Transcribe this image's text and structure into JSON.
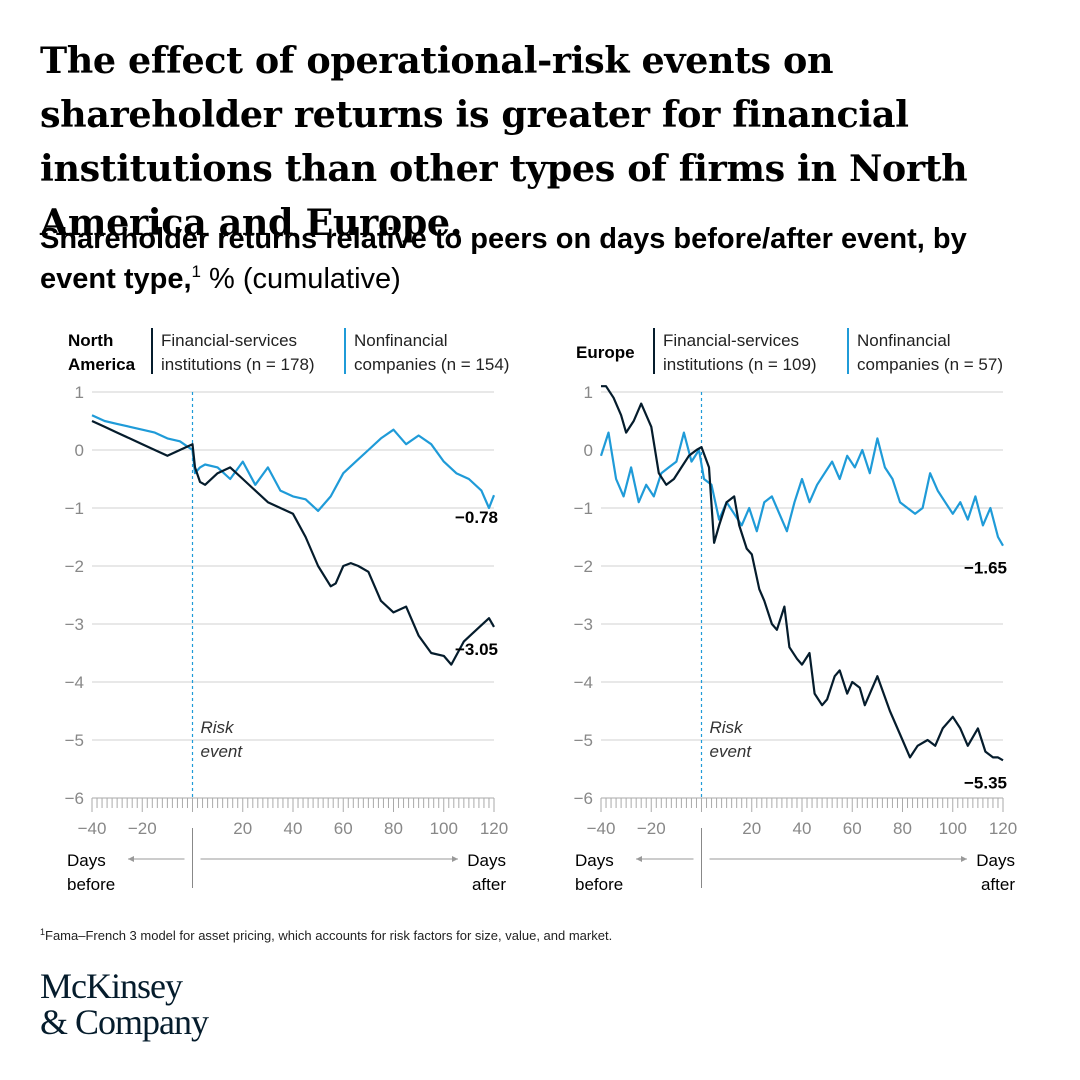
{
  "headline": "The effect of operational-risk events on shareholder returns is greater for financial institutions than other types of firms in North America and Europe.",
  "subtitle": {
    "bold": "Shareholder returns relative to peers on days before/after event, by event type,",
    "sup": "1",
    "rest": " % (cumulative)"
  },
  "colors": {
    "financial": "#051c2c",
    "nonfinancial": "#1f9bd8",
    "grid": "#d0d0d0",
    "risk_line": "#1f9bd8"
  },
  "labels": {
    "risk_event_line1": "Risk",
    "risk_event_line2": "event",
    "days_before_line1": "Days",
    "days_before_line2": "before",
    "days_after_line1": "Days",
    "days_after_line2": "after"
  },
  "chart_data": [
    {
      "type": "line",
      "region": "North America",
      "region_lines": [
        "North",
        "America"
      ],
      "xlabel": "Days",
      "ylabel": "%",
      "xlim": [
        -40,
        120
      ],
      "ylim": [
        -6,
        1
      ],
      "yticks": [
        1,
        0,
        -1,
        -2,
        -3,
        -4,
        -5,
        -6
      ],
      "yticklabels": [
        "1",
        "0",
        "−1",
        "−2",
        "−3",
        "−4",
        "−5",
        "−6"
      ],
      "xticks": [
        -40,
        -20,
        20,
        40,
        60,
        80,
        100,
        120
      ],
      "xticklabels": [
        "−40",
        "−20",
        "20",
        "40",
        "60",
        "80",
        "100",
        "120"
      ],
      "event_day": 0,
      "series": [
        {
          "name": "Financial-services institutions (n = 178)",
          "legend_lines": [
            "Financial-services",
            "institutions (n = 178)"
          ],
          "x": [
            -40,
            -35,
            -30,
            -25,
            -20,
            -15,
            -10,
            -5,
            0,
            1,
            3,
            5,
            10,
            15,
            20,
            25,
            30,
            35,
            40,
            45,
            50,
            55,
            57,
            60,
            63,
            66,
            70,
            75,
            80,
            85,
            90,
            95,
            100,
            103,
            108,
            113,
            118,
            120
          ],
          "values": [
            0.5,
            0.4,
            0.3,
            0.2,
            0.1,
            0.0,
            -0.1,
            0.0,
            0.1,
            -0.3,
            -0.55,
            -0.6,
            -0.4,
            -0.3,
            -0.5,
            -0.7,
            -0.9,
            -1.0,
            -1.1,
            -1.5,
            -2.0,
            -2.35,
            -2.3,
            -2.0,
            -1.95,
            -2.0,
            -2.1,
            -2.6,
            -2.8,
            -2.7,
            -3.2,
            -3.5,
            -3.55,
            -3.7,
            -3.3,
            -3.1,
            -2.9,
            -3.05
          ],
          "end_label": "−3.05"
        },
        {
          "name": "Nonfinancial companies (n = 154)",
          "legend_lines": [
            "Nonfinancial",
            "companies (n = 154)"
          ],
          "x": [
            -40,
            -35,
            -30,
            -25,
            -20,
            -15,
            -10,
            -5,
            0,
            1,
            3,
            5,
            10,
            15,
            20,
            25,
            30,
            35,
            40,
            45,
            50,
            55,
            60,
            65,
            70,
            75,
            80,
            85,
            90,
            95,
            100,
            105,
            110,
            115,
            118,
            120
          ],
          "values": [
            0.6,
            0.5,
            0.45,
            0.4,
            0.35,
            0.3,
            0.2,
            0.15,
            0.0,
            -0.4,
            -0.3,
            -0.25,
            -0.3,
            -0.5,
            -0.2,
            -0.6,
            -0.3,
            -0.7,
            -0.8,
            -0.85,
            -1.05,
            -0.8,
            -0.4,
            -0.2,
            0.0,
            0.2,
            0.35,
            0.1,
            0.25,
            0.1,
            -0.2,
            -0.4,
            -0.5,
            -0.7,
            -1.0,
            -0.78
          ],
          "end_label": "−0.78"
        }
      ]
    },
    {
      "type": "line",
      "region": "Europe",
      "region_lines": [
        "Europe"
      ],
      "xlabel": "Days",
      "ylabel": "%",
      "xlim": [
        -40,
        120
      ],
      "ylim": [
        -6,
        1
      ],
      "yticks": [
        1,
        0,
        -1,
        -2,
        -3,
        -4,
        -5,
        -6
      ],
      "yticklabels": [
        "1",
        "0",
        "−1",
        "−2",
        "−3",
        "−4",
        "−5",
        "−6"
      ],
      "xticks": [
        -40,
        -20,
        20,
        40,
        60,
        80,
        100,
        120
      ],
      "xticklabels": [
        "−40",
        "−20",
        "20",
        "40",
        "60",
        "80",
        "100",
        "120"
      ],
      "event_day": 0,
      "series": [
        {
          "name": "Financial-services institutions (n = 109)",
          "legend_lines": [
            "Financial-services",
            "institutions (n = 109)"
          ],
          "x": [
            -40,
            -38,
            -35,
            -32,
            -30,
            -27,
            -24,
            -20,
            -17,
            -14,
            -11,
            -8,
            -5,
            -2,
            0,
            3,
            5,
            7,
            10,
            13,
            15,
            18,
            20,
            23,
            25,
            28,
            30,
            33,
            35,
            38,
            40,
            43,
            45,
            48,
            50,
            53,
            55,
            58,
            60,
            63,
            65,
            70,
            75,
            80,
            83,
            86,
            90,
            93,
            96,
            100,
            103,
            106,
            110,
            113,
            116,
            118,
            120
          ],
          "values": [
            1.1,
            1.1,
            0.9,
            0.6,
            0.3,
            0.5,
            0.8,
            0.4,
            -0.4,
            -0.6,
            -0.5,
            -0.3,
            -0.1,
            0.0,
            0.05,
            -0.3,
            -1.6,
            -1.3,
            -0.9,
            -0.8,
            -1.3,
            -1.7,
            -1.8,
            -2.4,
            -2.6,
            -3.0,
            -3.1,
            -2.7,
            -3.4,
            -3.6,
            -3.7,
            -3.5,
            -4.2,
            -4.4,
            -4.3,
            -3.9,
            -3.8,
            -4.2,
            -4.0,
            -4.1,
            -4.4,
            -3.9,
            -4.5,
            -5.0,
            -5.3,
            -5.1,
            -5.0,
            -5.1,
            -4.8,
            -4.6,
            -4.8,
            -5.1,
            -4.8,
            -5.2,
            -5.3,
            -5.3,
            -5.35
          ],
          "end_label": "−5.35"
        },
        {
          "name": "Nonfinancial companies (n = 57)",
          "legend_lines": [
            "Nonfinancial",
            "companies (n = 57)"
          ],
          "x": [
            -40,
            -37,
            -34,
            -31,
            -28,
            -25,
            -22,
            -19,
            -16,
            -13,
            -10,
            -7,
            -4,
            -1,
            1,
            4,
            7,
            10,
            13,
            16,
            19,
            22,
            25,
            28,
            31,
            34,
            37,
            40,
            43,
            46,
            49,
            52,
            55,
            58,
            61,
            64,
            67,
            70,
            73,
            76,
            79,
            82,
            85,
            88,
            91,
            94,
            97,
            100,
            103,
            106,
            109,
            112,
            115,
            118,
            120
          ],
          "values": [
            -0.1,
            0.3,
            -0.5,
            -0.8,
            -0.3,
            -0.9,
            -0.6,
            -0.8,
            -0.4,
            -0.3,
            -0.2,
            0.3,
            -0.2,
            0.0,
            -0.5,
            -0.6,
            -1.2,
            -0.9,
            -1.1,
            -1.3,
            -1.0,
            -1.4,
            -0.9,
            -0.8,
            -1.1,
            -1.4,
            -0.9,
            -0.5,
            -0.9,
            -0.6,
            -0.4,
            -0.2,
            -0.5,
            -0.1,
            -0.3,
            0.0,
            -0.4,
            0.2,
            -0.3,
            -0.5,
            -0.9,
            -1.0,
            -1.1,
            -1.0,
            -0.4,
            -0.7,
            -0.9,
            -1.1,
            -0.9,
            -1.2,
            -0.8,
            -1.3,
            -1.0,
            -1.5,
            -1.65
          ],
          "end_label": "−1.65"
        }
      ]
    }
  ],
  "footnote": {
    "sup": "1",
    "text": "Fama–French 3 model for asset pricing, which accounts for risk factors for size, value, and market."
  },
  "logo": {
    "line1": "McKinsey",
    "line2": "& Company"
  }
}
